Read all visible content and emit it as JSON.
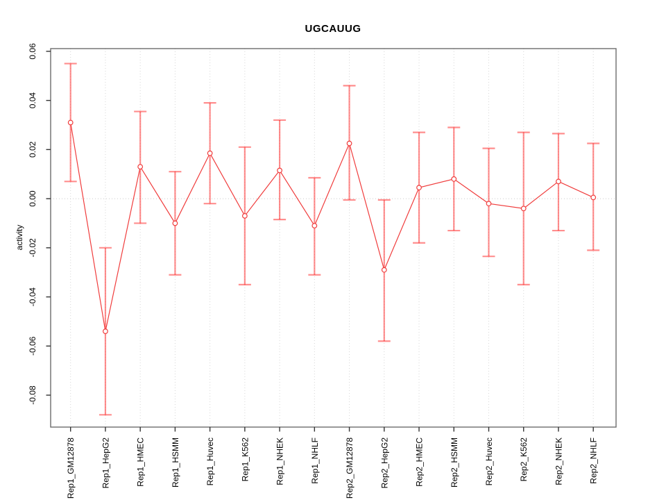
{
  "figure": {
    "title": "UGCAUUG",
    "ylabel": "activity"
  },
  "chart_data": {
    "type": "line",
    "title": "UGCAUUG",
    "xlabel": "",
    "ylabel": "activity",
    "categories": [
      "Rep1_GM12878",
      "Rep1_HepG2",
      "Rep1_HMEC",
      "Rep1_HSMM",
      "Rep1_Huvec",
      "Rep1_K562",
      "Rep1_NHEK",
      "Rep1_NHLF",
      "Rep2_GM12878",
      "Rep2_HepG2",
      "Rep2_HMEC",
      "Rep2_HSMM",
      "Rep2_Huvec",
      "Rep2_K562",
      "Rep2_NHEK",
      "Rep2_NHLF"
    ],
    "series": [
      {
        "name": "activity",
        "values": [
          0.031,
          -0.054,
          0.013,
          -0.01,
          0.0185,
          -0.007,
          0.0115,
          -0.011,
          0.0225,
          -0.029,
          0.0045,
          0.008,
          -0.002,
          -0.004,
          0.007,
          0.0005
        ],
        "upper": [
          0.055,
          -0.02,
          0.0355,
          0.011,
          0.039,
          0.021,
          0.032,
          0.0085,
          0.046,
          -0.0005,
          0.027,
          0.029,
          0.0205,
          0.027,
          0.0265,
          0.0225
        ],
        "lower": [
          0.007,
          -0.088,
          -0.01,
          -0.031,
          -0.002,
          -0.035,
          -0.0085,
          -0.031,
          -0.0005,
          -0.058,
          -0.018,
          -0.013,
          -0.0235,
          -0.035,
          -0.013,
          -0.021
        ]
      }
    ],
    "ylim": [
      -0.093,
      0.0611
    ],
    "ytick_values": [
      0.06,
      0.04,
      0.02,
      0.0,
      -0.02,
      -0.04,
      -0.06,
      -0.08
    ],
    "ytick_labels": [
      "0.06",
      "0.04",
      "0.02",
      "0.00",
      "-0.02",
      "-0.04",
      "-0.06",
      "-0.08"
    ],
    "grid": {
      "vertical_dotted_per_category": true,
      "horizontal_zero_line_dotted": true
    },
    "legend": null,
    "error_bars": true,
    "marker": "open-circle",
    "x_label_rotation": -90,
    "y_label_rotation": -90,
    "colors": {
      "series": "#f03c3c",
      "error_bar": "#ff2020",
      "grid": "#d6d6d6",
      "zero_line": "#c9c9c9",
      "box": "#6b6b6b",
      "tick": "#333333",
      "text": "#000000",
      "background": "#ffffff"
    }
  }
}
